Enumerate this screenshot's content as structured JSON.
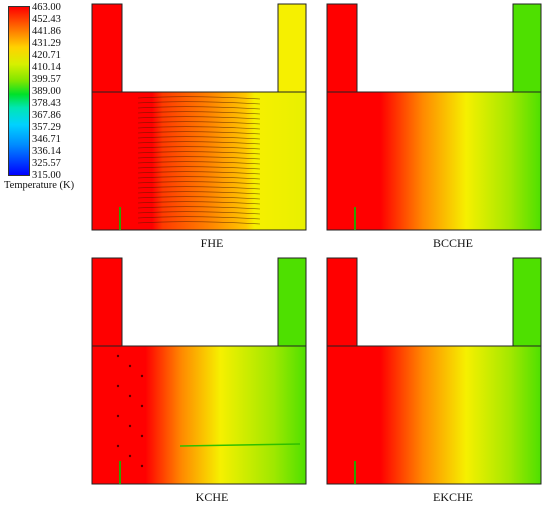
{
  "legend": {
    "title": "Temperature (K)",
    "ticks": [
      "463.00",
      "452.43",
      "441.86",
      "431.29",
      "420.71",
      "410.14",
      "399.57",
      "389.00",
      "378.43",
      "367.86",
      "357.29",
      "346.71",
      "336.14",
      "325.57",
      "315.00"
    ]
  },
  "panels": [
    {
      "caption": "FHE",
      "variant": "fins"
    },
    {
      "caption": "BCCHE",
      "variant": "smooth"
    },
    {
      "caption": "KCHE",
      "variant": "kagome"
    },
    {
      "caption": "EKCHE",
      "variant": "smooth2"
    }
  ],
  "colors": {
    "hot": "#ff0000",
    "orange": "#ff8a00",
    "yellow": "#f6f000",
    "green": "#4ee000",
    "outline": "#222222"
  }
}
